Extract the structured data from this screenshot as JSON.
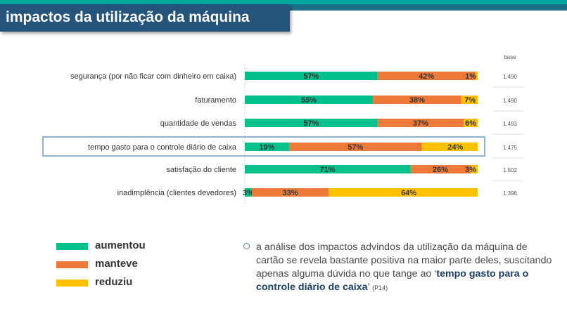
{
  "title": "impactos da utilização da máquina",
  "base_header": "base",
  "colors": {
    "aumentou": "#00c08b",
    "manteve": "#ee7a3a",
    "reduziu": "#ffc000",
    "highlight": "#8fb3d6"
  },
  "chart_data": {
    "type": "bar",
    "orientation": "horizontal",
    "stacked": true,
    "categories": [
      "segurança (por não ficar com dinheiro em caixa)",
      "faturamento",
      "quantidade de vendas",
      "tempo gasto para o controle diário de caixa",
      "satisfação do cliente",
      "inadimplência (clientes devedores)"
    ],
    "series": [
      {
        "name": "aumentou",
        "values": [
          57,
          55,
          57,
          19,
          71,
          3
        ]
      },
      {
        "name": "manteve",
        "values": [
          42,
          38,
          37,
          57,
          26,
          33
        ]
      },
      {
        "name": "reduziu",
        "values": [
          1,
          7,
          6,
          24,
          3,
          64
        ]
      }
    ],
    "value_labels": [
      [
        "57%",
        "42%",
        "1%"
      ],
      [
        "55%",
        "38%",
        "7%"
      ],
      [
        "57%",
        "37%",
        "6%"
      ],
      [
        "19%",
        "57%",
        "24%"
      ],
      [
        "71%",
        "26%",
        "3%"
      ],
      [
        "3%",
        "33%",
        "64%"
      ]
    ],
    "base": [
      "1.490",
      "1.490",
      "1.493",
      "1.475",
      "1.502",
      "1.396"
    ],
    "highlighted_category": "tempo gasto para o controle diário de caixa",
    "xlim": [
      0,
      100
    ],
    "grid": false,
    "legend_position": "bottom-left"
  },
  "legend": [
    {
      "label": "aumentou"
    },
    {
      "label": "manteve"
    },
    {
      "label": "reduziu"
    }
  ],
  "note": {
    "text": "a análise dos impactos advindos da utilização da máquina de cartão se revela bastante positiva na maior parte deles, suscitando apenas alguma dúvida no que tange ao ‘",
    "emphasis": "tempo gasto para o controle diário de caixa",
    "closing": "’",
    "ref": "(P14)"
  }
}
